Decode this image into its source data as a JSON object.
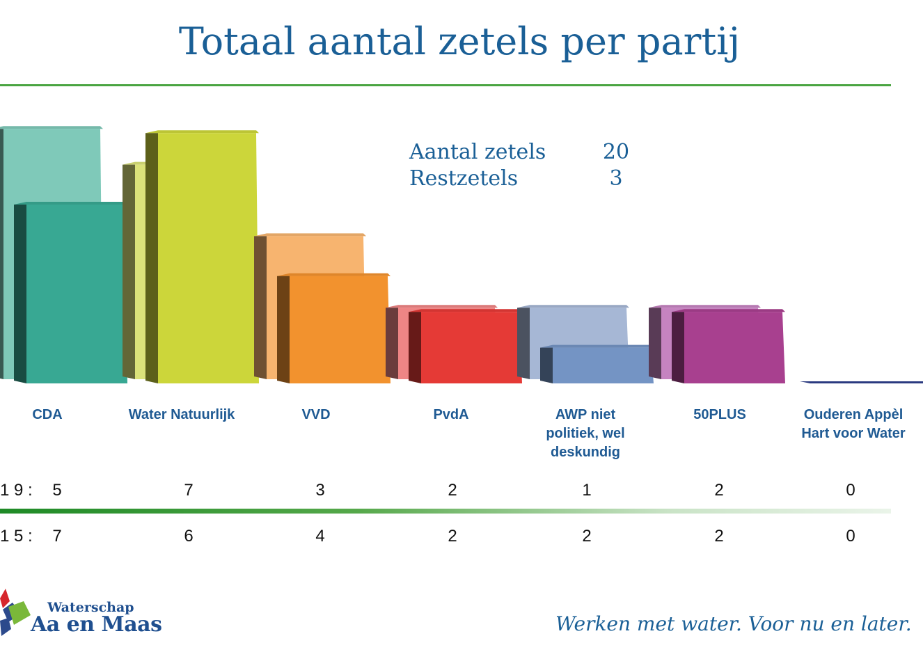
{
  "title": "Totaal aantal zetels per partij",
  "info": {
    "seats_label": "Aantal zetels",
    "seats_value": "20",
    "rest_label": "Restzetels",
    "rest_value": "3"
  },
  "rows": {
    "label_2019": "1 9 :",
    "label_2015": "1 5 :"
  },
  "logo": {
    "small": "Waterschap",
    "big": "Aa en Maas"
  },
  "slogan": "Werken met water. Voor nu en later.",
  "chart_data": {
    "type": "bar",
    "title": "Totaal aantal zetels per partij",
    "categories": [
      "CDA",
      "Water Natuurlijk",
      "VVD",
      "PvdA",
      "AWP niet politiek, wel deskundig",
      "50PLUS",
      "Ouderen Appèl Hart voor Water"
    ],
    "display_labels": [
      "CDA",
      "Water Natuurlijk",
      "VVD",
      "PvdA",
      "AWP niet\npolitiek, wel\ndeskundig",
      "50PLUS",
      "Ouderen Appèl\nHart voor Water"
    ],
    "series": [
      {
        "name": "2015",
        "values": [
          7,
          6,
          4,
          2,
          2,
          2,
          0
        ]
      },
      {
        "name": "2019",
        "values": [
          5,
          7,
          3,
          2,
          1,
          2,
          0
        ]
      }
    ],
    "colors": {
      "2015": [
        "#7fc9b9",
        "#dbe27a",
        "#f7b46f",
        "#ee8585",
        "#a6b7d5",
        "#c583c0",
        "#6f78a8"
      ],
      "2019": [
        "#38a893",
        "#ccd63a",
        "#f2922e",
        "#e53a36",
        "#7494c4",
        "#a8408f",
        "#2b3a80"
      ]
    },
    "xlabel": "",
    "ylabel": "",
    "ylim": [
      0,
      7
    ],
    "grid": false,
    "legend": "none"
  }
}
